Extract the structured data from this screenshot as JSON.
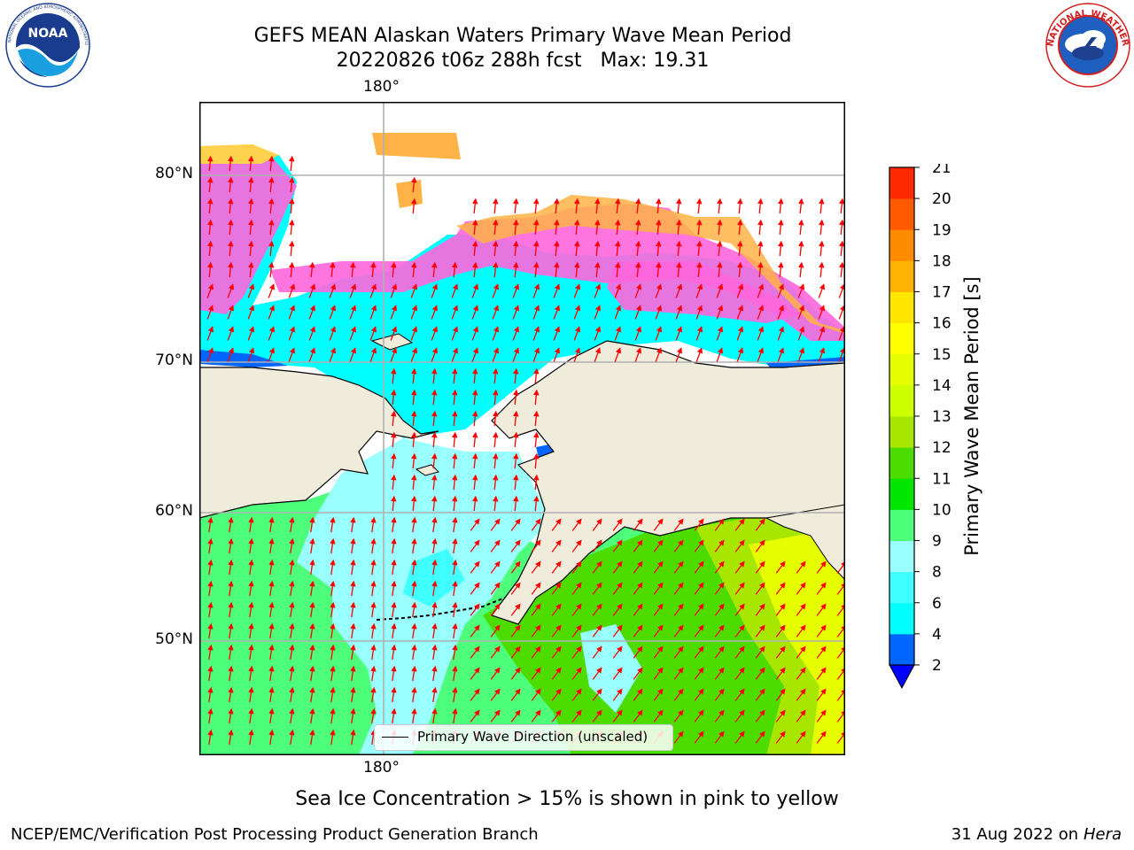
{
  "title": {
    "line1": "GEFS MEAN Alaskan Waters Primary Wave Mean Period",
    "line2": "20220826 t06z 288h fcst   Max: 19.31"
  },
  "logos": {
    "noaa": {
      "text": "NOAA",
      "ring_text": "NATIONAL OCEANIC AND ATMOSPHERIC ADMINISTRATION · U.S. DEPARTMENT OF COMMERCE"
    },
    "nws": {
      "ring_text": "NATIONAL WEATHER SERVICE"
    }
  },
  "map": {
    "lon_label_top": "180°",
    "lon_label_bottom": "180°",
    "lat_labels": [
      "80°N",
      "70°N",
      "60°N",
      "50°N"
    ],
    "legend": "Primary Wave Direction (unscaled)",
    "colors": {
      "land": "#efecdc",
      "grid": "#b0b0b0",
      "arrow": "#ff0000",
      "coast": "#000000"
    }
  },
  "colorbar": {
    "label": "Primary Wave Mean Period [s]",
    "ticks": [
      "2",
      "4",
      "6",
      "8",
      "9",
      "10",
      "11",
      "12",
      "13",
      "14",
      "15",
      "16",
      "17",
      "18",
      "19",
      "20",
      "21"
    ],
    "colors": [
      "#0066ff",
      "#00ffff",
      "#40ffff",
      "#99ffff",
      "#4dff7a",
      "#00e600",
      "#4ddc00",
      "#a6e600",
      "#ccff00",
      "#e6ff00",
      "#ffff00",
      "#ffe600",
      "#ffb300",
      "#ff8c00",
      "#ff5a00",
      "#ff2a00"
    ],
    "extend_color": "#0000ff"
  },
  "footnote": "Sea Ice Concentration > 15% is shown in pink to yellow",
  "credit": "NCEP/EMC/Verification Post Processing Product Generation Branch",
  "date": {
    "text": "31 Aug 2022 on",
    "host": "Hera"
  }
}
